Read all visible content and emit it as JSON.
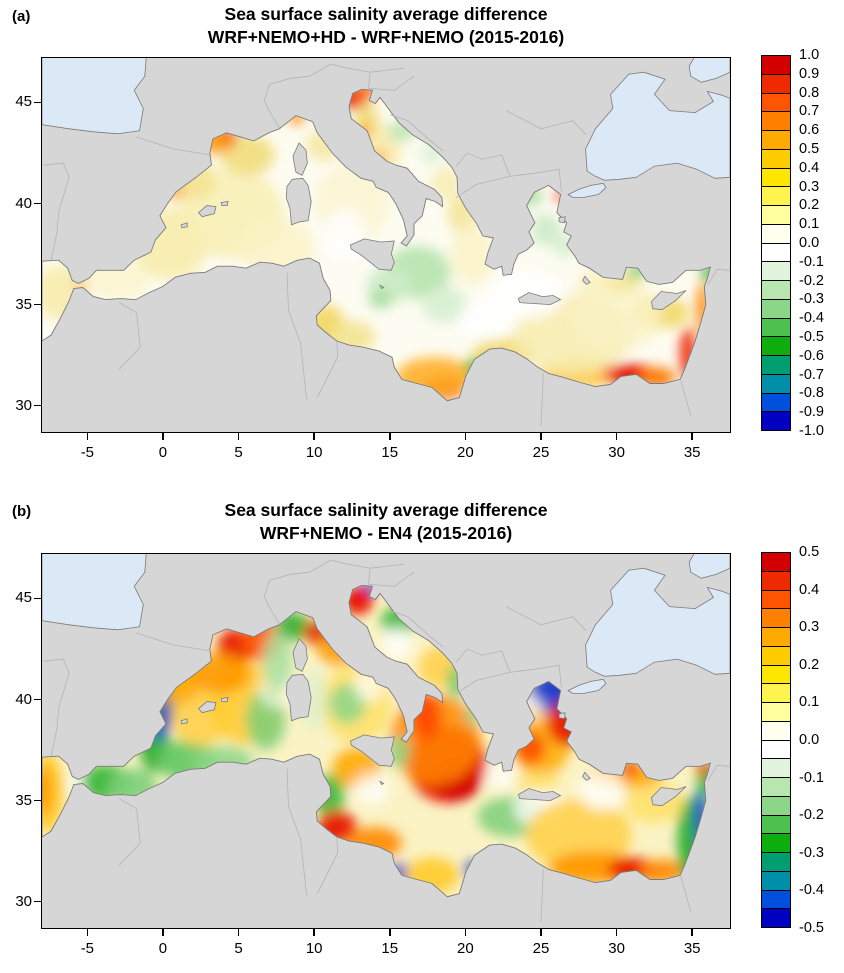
{
  "chart_data": [
    {
      "panel_label": "(a)",
      "type": "geo-heatmap",
      "title": "Sea surface salinity average difference",
      "subtitle": "WRF+NEMO+HD - WRF+NEMO (2015-2016)",
      "lon_range": [
        -8,
        37.5
      ],
      "lat_range": [
        28.7,
        47.2
      ],
      "x_ticks": [
        {
          "value": -5,
          "label": "-5"
        },
        {
          "value": 0,
          "label": "0"
        },
        {
          "value": 5,
          "label": "5"
        },
        {
          "value": 10,
          "label": "10"
        },
        {
          "value": 15,
          "label": "15"
        },
        {
          "value": 20,
          "label": "20"
        },
        {
          "value": 25,
          "label": "25"
        },
        {
          "value": 30,
          "label": "30"
        },
        {
          "value": 35,
          "label": "35"
        }
      ],
      "y_ticks": [
        {
          "value": 45,
          "label": "45"
        },
        {
          "value": 40,
          "label": "40"
        },
        {
          "value": 35,
          "label": "35"
        },
        {
          "value": 30,
          "label": "30"
        }
      ],
      "colorbar": {
        "min": -1.0,
        "max": 1.0,
        "label_step": 0.1,
        "tick_labels": [
          "1.0",
          "0.9",
          "0.8",
          "0.7",
          "0.6",
          "0.5",
          "0.4",
          "0.3",
          "0.2",
          "0.1",
          "0.0",
          "-0.1",
          "-0.2",
          "-0.3",
          "-0.4",
          "-0.5",
          "-0.6",
          "-0.7",
          "-0.8",
          "-0.9",
          "-1.0"
        ],
        "colors": [
          "#d40000",
          "#ef2a00",
          "#ff5500",
          "#ff8000",
          "#ffaa00",
          "#ffcc00",
          "#ffe600",
          "#fff34d",
          "#ffffa0",
          "#fffff0",
          "#ffffff",
          "#e3f4dc",
          "#b9e5b1",
          "#8cd687",
          "#4dc04d",
          "#0fae0f",
          "#009e70",
          "#008fa8",
          "#0050dd",
          "#0000c0"
        ]
      },
      "base_color": "#fdfcf2",
      "features_format": [
        "lon",
        "lat",
        "rx_deg",
        "ry_deg",
        "color",
        "opacity"
      ],
      "features": [
        [
          -6.8,
          35.6,
          1.6,
          1.4,
          "#f7ecae",
          0.9
        ],
        [
          -5.35,
          35.95,
          0.45,
          0.3,
          "#ffaa33",
          0.85
        ],
        [
          -3.0,
          36.2,
          2.2,
          1.0,
          "#fbf4cf",
          0.85
        ],
        [
          0.5,
          38.0,
          2.5,
          1.8,
          "#f7ecae",
          0.9
        ],
        [
          4.5,
          39.5,
          3.5,
          2.2,
          "#f8efb6",
          0.9
        ],
        [
          7.5,
          37.8,
          2.5,
          1.5,
          "#faf2c4",
          0.8
        ],
        [
          2.0,
          41.2,
          1.5,
          1.0,
          "#f3e390",
          0.85
        ],
        [
          5.6,
          42.4,
          1.8,
          1.0,
          "#f1dd7c",
          0.9
        ],
        [
          4.2,
          43.25,
          0.7,
          0.45,
          "#e81600",
          1
        ],
        [
          3.5,
          43.05,
          1.2,
          0.6,
          "#ff9900",
          0.85
        ],
        [
          8.85,
          44.25,
          0.55,
          0.35,
          "#ff8800",
          0.85
        ],
        [
          0.9,
          40.55,
          0.5,
          0.35,
          "#ffa314",
          0.9
        ],
        [
          12.5,
          40.0,
          2.5,
          2.0,
          "#fbf4cf",
          0.8
        ],
        [
          10.6,
          42.9,
          1.2,
          0.8,
          "#f3e390",
          0.7
        ],
        [
          12.7,
          45.2,
          0.9,
          0.55,
          "#e81600",
          1
        ],
        [
          13.3,
          45.55,
          0.8,
          0.4,
          "#ff6600",
          0.9
        ],
        [
          13.5,
          44.0,
          0.8,
          1.1,
          "#f1dd7c",
          0.9
        ],
        [
          14.6,
          42.7,
          1.2,
          1.2,
          "#f7ecae",
          0.85
        ],
        [
          13.35,
          43.65,
          0.5,
          0.4,
          "#ffa314",
          0.8
        ],
        [
          14.35,
          42.35,
          0.5,
          0.4,
          "#ffb027",
          0.7
        ],
        [
          15.8,
          43.6,
          0.9,
          0.5,
          "#b9e5b1",
          0.9
        ],
        [
          17.8,
          42.5,
          0.8,
          0.5,
          "#d5efcf",
          0.8
        ],
        [
          18.7,
          41.0,
          1.0,
          0.8,
          "#f7ecae",
          0.85
        ],
        [
          19.8,
          39.5,
          1.0,
          1.0,
          "#f3e390",
          0.8
        ],
        [
          20.5,
          37.5,
          1.5,
          1.5,
          "#faf2c4",
          0.8
        ],
        [
          16.8,
          36.6,
          2.2,
          1.3,
          "#b9e5b1",
          0.95
        ],
        [
          15.0,
          36.0,
          1.5,
          0.9,
          "#cdebc6",
          0.9
        ],
        [
          18.6,
          35.0,
          1.5,
          0.9,
          "#d5efcf",
          0.85
        ],
        [
          14.4,
          35.3,
          0.8,
          0.5,
          "#a9dfa0",
          0.9
        ],
        [
          10.8,
          34.0,
          1.2,
          1.0,
          "#f2d865",
          0.95
        ],
        [
          12.5,
          33.4,
          1.5,
          0.8,
          "#f3e390",
          0.9
        ],
        [
          18.6,
          30.9,
          1.4,
          0.6,
          "#e81600",
          1
        ],
        [
          18.0,
          31.4,
          2.6,
          1.0,
          "#ffb027",
          0.9
        ],
        [
          20.6,
          31.9,
          0.6,
          0.45,
          "#2fae2f",
          0.9
        ],
        [
          22.5,
          32.6,
          2.0,
          0.8,
          "#f2d865",
          0.9
        ],
        [
          27.5,
          31.6,
          2.5,
          0.7,
          "#ffc53d",
          0.95
        ],
        [
          30.9,
          31.55,
          1.8,
          0.5,
          "#e81600",
          1
        ],
        [
          32.7,
          31.4,
          1.2,
          0.5,
          "#ff7700",
          0.95
        ],
        [
          34.7,
          32.6,
          0.5,
          1.3,
          "#ee2200",
          0.95
        ],
        [
          35.7,
          34.8,
          0.45,
          1.3,
          "#ff8800",
          0.9
        ],
        [
          33.0,
          34.6,
          1.8,
          0.8,
          "#f2d865",
          0.9
        ],
        [
          27.0,
          33.5,
          4.0,
          2.0,
          "#f7ecae",
          0.85
        ],
        [
          30.0,
          34.5,
          3.0,
          1.8,
          "#faf2c4",
          0.8
        ],
        [
          36.1,
          36.55,
          0.5,
          0.4,
          "#2fae2f",
          0.95
        ],
        [
          31.3,
          36.6,
          0.7,
          0.35,
          "#63c763",
          0.85
        ],
        [
          30.0,
          36.1,
          1.5,
          0.5,
          "#f3e390",
          0.8
        ],
        [
          28.5,
          36.0,
          1.2,
          0.8,
          "#faf2c4",
          0.8
        ],
        [
          25.3,
          38.7,
          1.0,
          0.8,
          "#cdebc6",
          0.9
        ],
        [
          24.2,
          40.4,
          0.9,
          0.5,
          "#a9dfa0",
          0.9
        ],
        [
          23.2,
          40.2,
          0.5,
          0.4,
          "#63c763",
          0.9
        ],
        [
          26.6,
          37.9,
          0.8,
          0.6,
          "#d5efcf",
          0.85
        ],
        [
          26.2,
          40.35,
          0.35,
          0.25,
          "#ee3300",
          0.9
        ],
        [
          24.0,
          35.5,
          2.5,
          1.2,
          "#ffffff",
          0.9
        ],
        [
          21.5,
          34.2,
          2.0,
          1.0,
          "#ffffff",
          0.85
        ],
        [
          12.0,
          38.5,
          1.5,
          1.2,
          "#ffffff",
          0.8
        ]
      ]
    },
    {
      "panel_label": "(b)",
      "type": "geo-heatmap",
      "title": "Sea surface salinity average difference",
      "subtitle": "WRF+NEMO - EN4 (2015-2016)",
      "lon_range": [
        -8,
        37.5
      ],
      "lat_range": [
        28.7,
        47.2
      ],
      "x_ticks": [
        {
          "value": -5,
          "label": "-5"
        },
        {
          "value": 0,
          "label": "0"
        },
        {
          "value": 5,
          "label": "5"
        },
        {
          "value": 10,
          "label": "10"
        },
        {
          "value": 15,
          "label": "15"
        },
        {
          "value": 20,
          "label": "20"
        },
        {
          "value": 25,
          "label": "25"
        },
        {
          "value": 30,
          "label": "30"
        },
        {
          "value": 35,
          "label": "35"
        }
      ],
      "y_ticks": [
        {
          "value": 45,
          "label": "45"
        },
        {
          "value": 40,
          "label": "40"
        },
        {
          "value": 35,
          "label": "35"
        },
        {
          "value": 30,
          "label": "30"
        }
      ],
      "colorbar": {
        "min": -0.5,
        "max": 0.5,
        "label_step": 0.1,
        "tick_labels": [
          "0.5",
          "0.4",
          "0.3",
          "0.2",
          "0.1",
          "0.0",
          "-0.1",
          "-0.2",
          "-0.3",
          "-0.4",
          "-0.5"
        ],
        "colors": [
          "#d40000",
          "#ef2a00",
          "#ff5500",
          "#ff8000",
          "#ffaa00",
          "#ffcc00",
          "#ffe600",
          "#fff34d",
          "#ffffa0",
          "#fffff0",
          "#ffffff",
          "#e3f4dc",
          "#b9e5b1",
          "#8cd687",
          "#4dc04d",
          "#0fae0f",
          "#009e70",
          "#008fa8",
          "#0050dd",
          "#0000c0"
        ]
      },
      "base_color": "#fbf3c4",
      "features_format": [
        "lon",
        "lat",
        "rx_deg",
        "ry_deg",
        "color",
        "opacity"
      ],
      "features": [
        [
          -7.6,
          35.4,
          1.0,
          2.0,
          "#ffcc33",
          1
        ],
        [
          -7.9,
          35.5,
          0.6,
          1.2,
          "#ff9900",
          0.9
        ],
        [
          -5.4,
          35.9,
          0.7,
          0.5,
          "#ffffff",
          0.9
        ],
        [
          -3.8,
          35.9,
          1.6,
          0.9,
          "#3cb83c",
          0.95
        ],
        [
          -2.0,
          35.7,
          1.6,
          0.9,
          "#7ccf78",
          0.9
        ],
        [
          -0.6,
          38.0,
          1.0,
          1.6,
          "#2fae2f",
          0.95
        ],
        [
          0.3,
          39.9,
          0.8,
          1.0,
          "#2fae2f",
          0.9
        ],
        [
          0.15,
          39.3,
          0.5,
          0.9,
          "#1535cc",
          0.9
        ],
        [
          -0.2,
          38.4,
          0.4,
          0.5,
          "#2a50dd",
          0.85
        ],
        [
          1.5,
          37.0,
          2.0,
          1.0,
          "#63c763",
          0.9
        ],
        [
          4.0,
          36.9,
          2.0,
          0.8,
          "#8cd687",
          0.85
        ],
        [
          2.5,
          39.2,
          2.0,
          1.5,
          "#ffd24d",
          0.9
        ],
        [
          5.5,
          39.8,
          2.5,
          2.0,
          "#ffcc33",
          0.9
        ],
        [
          1.0,
          40.8,
          1.5,
          1.0,
          "#ffaa00",
          0.9
        ],
        [
          6.8,
          39.0,
          1.3,
          1.5,
          "#7ccf78",
          0.85
        ],
        [
          7.5,
          40.5,
          1.2,
          1.0,
          "#ffffff",
          0.6
        ],
        [
          4.8,
          42.6,
          1.2,
          0.9,
          "#e81600",
          0.95
        ],
        [
          6.5,
          42.9,
          1.3,
          1.0,
          "#ff5500",
          0.9
        ],
        [
          3.8,
          41.3,
          2.0,
          1.0,
          "#ff9900",
          0.9
        ],
        [
          8.6,
          43.6,
          1.2,
          0.7,
          "#2fae2f",
          0.9
        ],
        [
          7.6,
          41.9,
          1.0,
          1.5,
          "#a9dfa0",
          0.85
        ],
        [
          10.2,
          43.3,
          0.9,
          0.6,
          "#e82200",
          0.9
        ],
        [
          11.5,
          42.5,
          1.3,
          0.8,
          "#ff9900",
          0.85
        ],
        [
          12.8,
          39.8,
          2.3,
          2.0,
          "#ffe066",
          0.85
        ],
        [
          12.2,
          39.8,
          1.2,
          1.0,
          "#8cd687",
          0.85
        ],
        [
          13.6,
          40.7,
          1.0,
          0.8,
          "#ffffff",
          0.7
        ],
        [
          10.0,
          40.0,
          0.8,
          1.5,
          "#d5efcf",
          0.7
        ],
        [
          12.9,
          44.9,
          1.0,
          0.7,
          "#e81600",
          1
        ],
        [
          13.7,
          45.55,
          0.5,
          0.25,
          "#1535cc",
          0.95
        ],
        [
          15.6,
          43.9,
          1.2,
          0.7,
          "#3cb83c",
          0.9
        ],
        [
          15.5,
          42.8,
          1.0,
          0.8,
          "#ffffff",
          0.8
        ],
        [
          18.2,
          41.6,
          1.3,
          1.0,
          "#ffd24d",
          0.9
        ],
        [
          19.35,
          40.9,
          0.5,
          0.9,
          "#63c763",
          0.9
        ],
        [
          18.8,
          36.8,
          2.6,
          1.9,
          "#e81600",
          0.95
        ],
        [
          19.5,
          36.0,
          1.5,
          1.0,
          "#d40000",
          0.9
        ],
        [
          18.0,
          38.0,
          3.0,
          2.2,
          "#ff8800",
          0.85
        ],
        [
          17.4,
          39.2,
          1.0,
          1.2,
          "#ff4400",
          0.85
        ],
        [
          20.5,
          39.3,
          0.5,
          0.6,
          "#8cd687",
          0.8
        ],
        [
          12.8,
          36.6,
          1.6,
          1.0,
          "#ffaa00",
          0.9
        ],
        [
          11.0,
          35.2,
          1.0,
          1.1,
          "#3cb83c",
          0.9
        ],
        [
          13.8,
          35.6,
          1.2,
          0.8,
          "#ffffff",
          0.75
        ],
        [
          15.6,
          37.4,
          0.7,
          0.8,
          "#8cd687",
          0.85
        ],
        [
          11.5,
          33.7,
          1.3,
          0.8,
          "#e81600",
          0.95
        ],
        [
          14.0,
          32.9,
          1.8,
          0.8,
          "#ff8800",
          0.9
        ],
        [
          15.7,
          31.4,
          0.6,
          0.5,
          "#1535cc",
          0.9
        ],
        [
          17.8,
          31.3,
          1.8,
          0.9,
          "#ffcc33",
          0.95
        ],
        [
          20.4,
          31.6,
          0.5,
          0.45,
          "#2244cc",
          0.85
        ],
        [
          23.0,
          34.2,
          2.2,
          1.0,
          "#7ccf78",
          0.85
        ],
        [
          25.0,
          34.6,
          1.8,
          0.9,
          "#ffffff",
          0.8
        ],
        [
          27.5,
          33.3,
          3.5,
          1.8,
          "#ffd24d",
          0.9
        ],
        [
          28.5,
          31.7,
          3.0,
          0.8,
          "#ff9900",
          0.95
        ],
        [
          31.0,
          31.6,
          1.6,
          0.6,
          "#e81600",
          0.95
        ],
        [
          33.0,
          31.5,
          1.5,
          0.6,
          "#ff8800",
          0.9
        ],
        [
          34.9,
          33.0,
          0.9,
          2.2,
          "#2fae2f",
          0.95
        ],
        [
          35.6,
          34.3,
          0.45,
          1.6,
          "#1d3fd0",
          0.9
        ],
        [
          35.9,
          36.0,
          0.6,
          0.9,
          "#3cb83c",
          0.9
        ],
        [
          36.8,
          36.0,
          0.5,
          0.8,
          "#3cb83c",
          0.9
        ],
        [
          35.8,
          36.55,
          0.5,
          0.35,
          "#e82200",
          0.9
        ],
        [
          32.5,
          34.9,
          2.0,
          1.0,
          "#ffe066",
          0.85
        ],
        [
          30.5,
          36.2,
          2.5,
          0.6,
          "#ffaa00",
          0.9
        ],
        [
          30.9,
          36.6,
          0.6,
          0.4,
          "#ee3300",
          0.85
        ],
        [
          29.0,
          35.5,
          1.5,
          1.0,
          "#ffffff",
          0.8
        ],
        [
          25.0,
          38.0,
          2.0,
          1.8,
          "#ffaa00",
          0.85
        ],
        [
          25.9,
          40.3,
          1.6,
          1.0,
          "#1535cc",
          0.95
        ],
        [
          23.2,
          40.2,
          0.6,
          0.45,
          "#2a50dd",
          0.9
        ],
        [
          26.8,
          38.8,
          1.4,
          1.1,
          "#e81600",
          0.9
        ],
        [
          24.3,
          37.6,
          1.0,
          0.8,
          "#ff4400",
          0.85
        ],
        [
          23.4,
          39.2,
          0.6,
          0.5,
          "#8cd687",
          0.85
        ],
        [
          24.4,
          39.6,
          0.8,
          0.6,
          "#ffffff",
          0.7
        ],
        [
          24.8,
          35.9,
          1.5,
          0.5,
          "#ffe066",
          0.8
        ],
        [
          22.3,
          36.2,
          1.0,
          0.7,
          "#ffffff",
          0.7
        ]
      ]
    }
  ]
}
